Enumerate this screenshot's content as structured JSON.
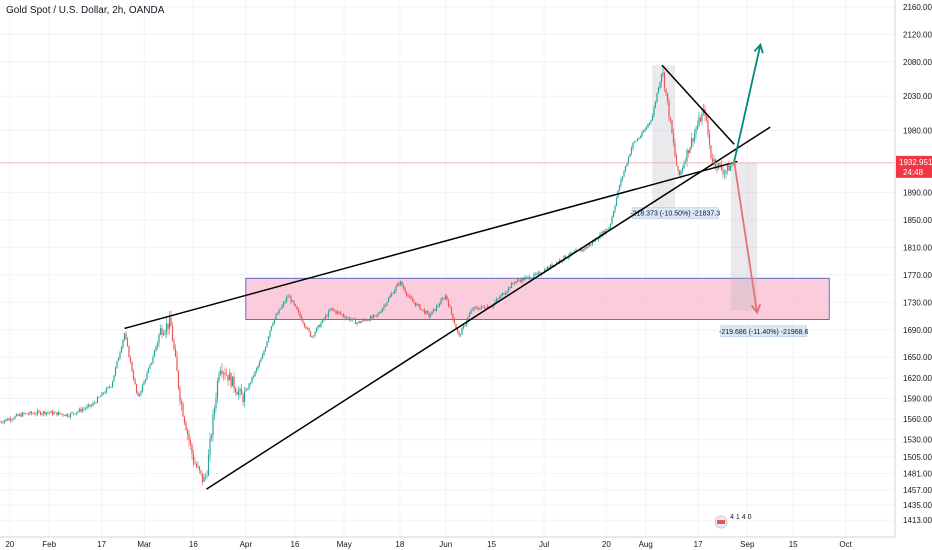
{
  "header": {
    "title": "Gold Spot / U.S. Dollar, 2h, OANDA"
  },
  "price_label": {
    "value": "1932.951",
    "countdown": "24:48",
    "color": "#f23645"
  },
  "event_badge": "4 1 4 0",
  "colors": {
    "up": "#26a69a",
    "down": "#ef5350",
    "zone_fill": "#f8bbd0",
    "zone_border": "#3f51b5",
    "arrow_up": "#00897b",
    "arrow_down": "#e57373",
    "trendline": "#000000"
  },
  "chart_data": {
    "type": "candlestick",
    "title": "Gold Spot / U.S. Dollar, 2h, OANDA",
    "y_ticks": [
      "2160.000",
      "2120.000",
      "2080.000",
      "2030.000",
      "1980.000",
      "1932.951",
      "1890.000",
      "1850.000",
      "1810.000",
      "1770.000",
      "1730.000",
      "1690.000",
      "1650.000",
      "1620.000",
      "1590.000",
      "1560.000",
      "1530.000",
      "1505.000",
      "1481.000",
      "1457.000",
      "1435.000",
      "1413.000"
    ],
    "x_ticks": [
      "20",
      "Feb",
      "17",
      "Mar",
      "16",
      "Apr",
      "16",
      "May",
      "18",
      "Jun",
      "15",
      "Jul",
      "20",
      "Aug",
      "17",
      "Sep",
      "15",
      "Oct"
    ],
    "x_range": [
      "2020-01-17",
      "2020-10-06"
    ],
    "y_range": [
      1400,
      2170
    ],
    "grid": true,
    "close_path": [
      [
        "2020-01-17",
        1556
      ],
      [
        "2020-01-24",
        1567
      ],
      [
        "2020-01-31",
        1570
      ],
      [
        "2020-02-07",
        1566
      ],
      [
        "2020-02-14",
        1580
      ],
      [
        "2020-02-20",
        1610
      ],
      [
        "2020-02-24",
        1685
      ],
      [
        "2020-02-28",
        1590
      ],
      [
        "2020-03-03",
        1640
      ],
      [
        "2020-03-06",
        1690
      ],
      [
        "2020-03-09",
        1700
      ],
      [
        "2020-03-12",
        1590
      ],
      [
        "2020-03-16",
        1500
      ],
      [
        "2020-03-19",
        1470
      ],
      [
        "2020-03-20",
        1480
      ],
      [
        "2020-03-24",
        1640
      ],
      [
        "2020-03-27",
        1620
      ],
      [
        "2020-03-31",
        1590
      ],
      [
        "2020-04-06",
        1650
      ],
      [
        "2020-04-09",
        1700
      ],
      [
        "2020-04-14",
        1740
      ],
      [
        "2020-04-21",
        1680
      ],
      [
        "2020-04-27",
        1720
      ],
      [
        "2020-05-05",
        1700
      ],
      [
        "2020-05-11",
        1710
      ],
      [
        "2020-05-18",
        1760
      ],
      [
        "2020-05-21",
        1735
      ],
      [
        "2020-05-27",
        1710
      ],
      [
        "2020-06-01",
        1740
      ],
      [
        "2020-06-05",
        1680
      ],
      [
        "2020-06-09",
        1720
      ],
      [
        "2020-06-15",
        1725
      ],
      [
        "2020-06-22",
        1760
      ],
      [
        "2020-06-29",
        1770
      ],
      [
        "2020-07-07",
        1795
      ],
      [
        "2020-07-14",
        1810
      ],
      [
        "2020-07-21",
        1840
      ],
      [
        "2020-07-24",
        1900
      ],
      [
        "2020-07-28",
        1960
      ],
      [
        "2020-07-31",
        1975
      ],
      [
        "2020-08-03",
        2000
      ],
      [
        "2020-08-06",
        2070
      ],
      [
        "2020-08-07",
        2040
      ],
      [
        "2020-08-11",
        1910
      ],
      [
        "2020-08-13",
        1940
      ],
      [
        "2020-08-17",
        1990
      ],
      [
        "2020-08-19",
        2010
      ],
      [
        "2020-08-21",
        1940
      ],
      [
        "2020-08-25",
        1920
      ],
      [
        "2020-08-28",
        1932.951
      ]
    ],
    "trendlines": [
      {
        "name": "upper-trendline",
        "from": [
          "2020-02-24",
          1692
        ],
        "to": [
          "2020-08-29",
          1935
        ]
      },
      {
        "name": "lower-trendline",
        "from": [
          "2020-03-20",
          1458
        ],
        "to": [
          "2020-09-08",
          1985
        ]
      },
      {
        "name": "wedge-top-line",
        "from": [
          "2020-08-06",
          2075
        ],
        "to": [
          "2020-08-28",
          1960
        ]
      }
    ],
    "zone": {
      "from": "2020-04-01",
      "to": "2020-09-26",
      "y_low": 1705,
      "y_high": 1765
    },
    "arrows": [
      {
        "name": "bullish-arrow",
        "from": [
          "2020-08-28",
          1935
        ],
        "to": [
          "2020-09-05",
          2105
        ]
      },
      {
        "name": "bearish-arrow",
        "from": [
          "2020-08-28",
          1935
        ],
        "to": [
          "2020-09-04",
          1715
        ]
      }
    ],
    "measurements": [
      {
        "name": "measure-1",
        "from": "2020-08-03",
        "to": "2020-08-10",
        "y_low": 1865,
        "y_high": 2075,
        "label": "-218.373 (-10.50%) -21837.3",
        "label_at": [
          "2020-08-10",
          1862
        ]
      },
      {
        "name": "measure-2",
        "from": "2020-08-27",
        "to": "2020-09-04",
        "y_low": 1718,
        "y_high": 1933,
        "label": "-219.686 (-11.40%) -21968.6",
        "label_at": [
          "2020-09-06",
          1690
        ]
      }
    ]
  }
}
